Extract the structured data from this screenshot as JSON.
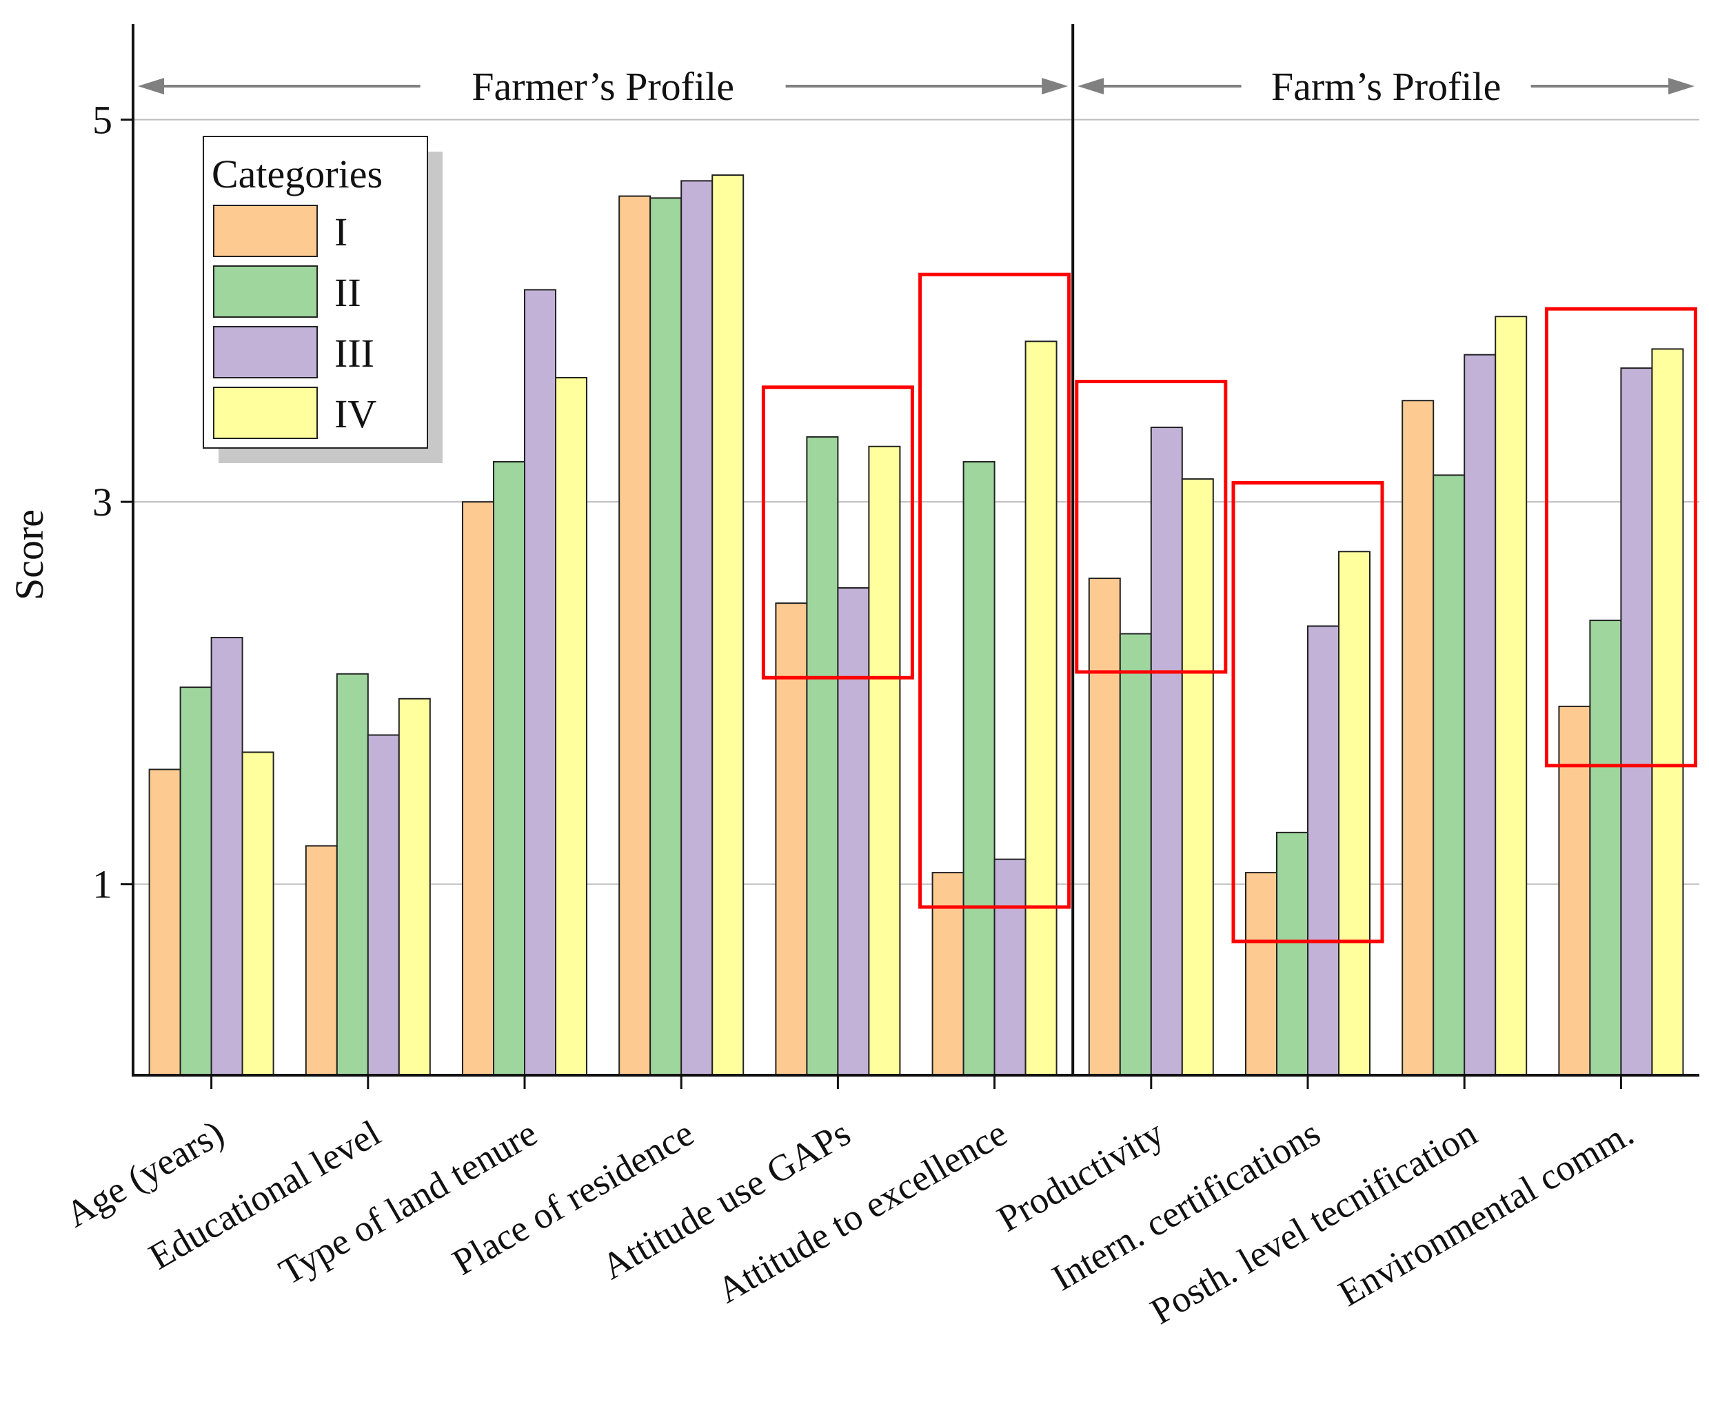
{
  "chart_data": {
    "type": "bar",
    "ylabel": "Score",
    "ylim": [
      0,
      5.5
    ],
    "yticks": [
      1,
      3,
      5
    ],
    "grid": true,
    "legend": {
      "title": "Categories",
      "placement": "top-left"
    },
    "categories": [
      "Age (years)",
      "Educational level",
      "Type of land tenure",
      "Place of residence",
      "Attitude use GAPs",
      "Attitude to excellence",
      "Productivity",
      "Intern. certifications",
      "Posth. level tecnification",
      "Environmental comm."
    ],
    "series": [
      {
        "name": "I",
        "color": "#FDCB92",
        "values": [
          1.6,
          1.2,
          3.0,
          4.6,
          2.47,
          1.06,
          2.6,
          1.06,
          3.53,
          1.93
        ]
      },
      {
        "name": "II",
        "color": "#9ED69E",
        "values": [
          2.03,
          2.1,
          3.21,
          4.59,
          3.34,
          3.21,
          2.31,
          1.27,
          3.14,
          2.38
        ]
      },
      {
        "name": "III",
        "color": "#C2B2D8",
        "values": [
          2.29,
          1.78,
          4.11,
          4.68,
          2.55,
          1.13,
          3.39,
          2.35,
          3.77,
          3.7
        ]
      },
      {
        "name": "IV",
        "color": "#FFFF9E",
        "values": [
          1.69,
          1.97,
          3.65,
          4.71,
          3.29,
          3.84,
          3.12,
          2.74,
          3.97,
          3.8
        ]
      }
    ],
    "sections": [
      {
        "label": "Farmer’s Profile",
        "from_category": 0,
        "to_category": 5
      },
      {
        "label": "Farm’s Profile",
        "from_category": 6,
        "to_category": 9
      }
    ],
    "highlight_boxes": [
      {
        "category": "Attitude use GAPs",
        "y_range": [
          2.08,
          3.6
        ]
      },
      {
        "category": "Attitude to excellence",
        "y_range": [
          0.88,
          4.19
        ]
      },
      {
        "category": "Productivity",
        "y_range": [
          2.11,
          3.63
        ]
      },
      {
        "category": "Intern. certifications",
        "y_range": [
          0.7,
          3.1
        ]
      },
      {
        "category": "Environmental comm.",
        "y_range": [
          1.62,
          4.01
        ]
      }
    ],
    "highlight_color": "#FF0000"
  }
}
